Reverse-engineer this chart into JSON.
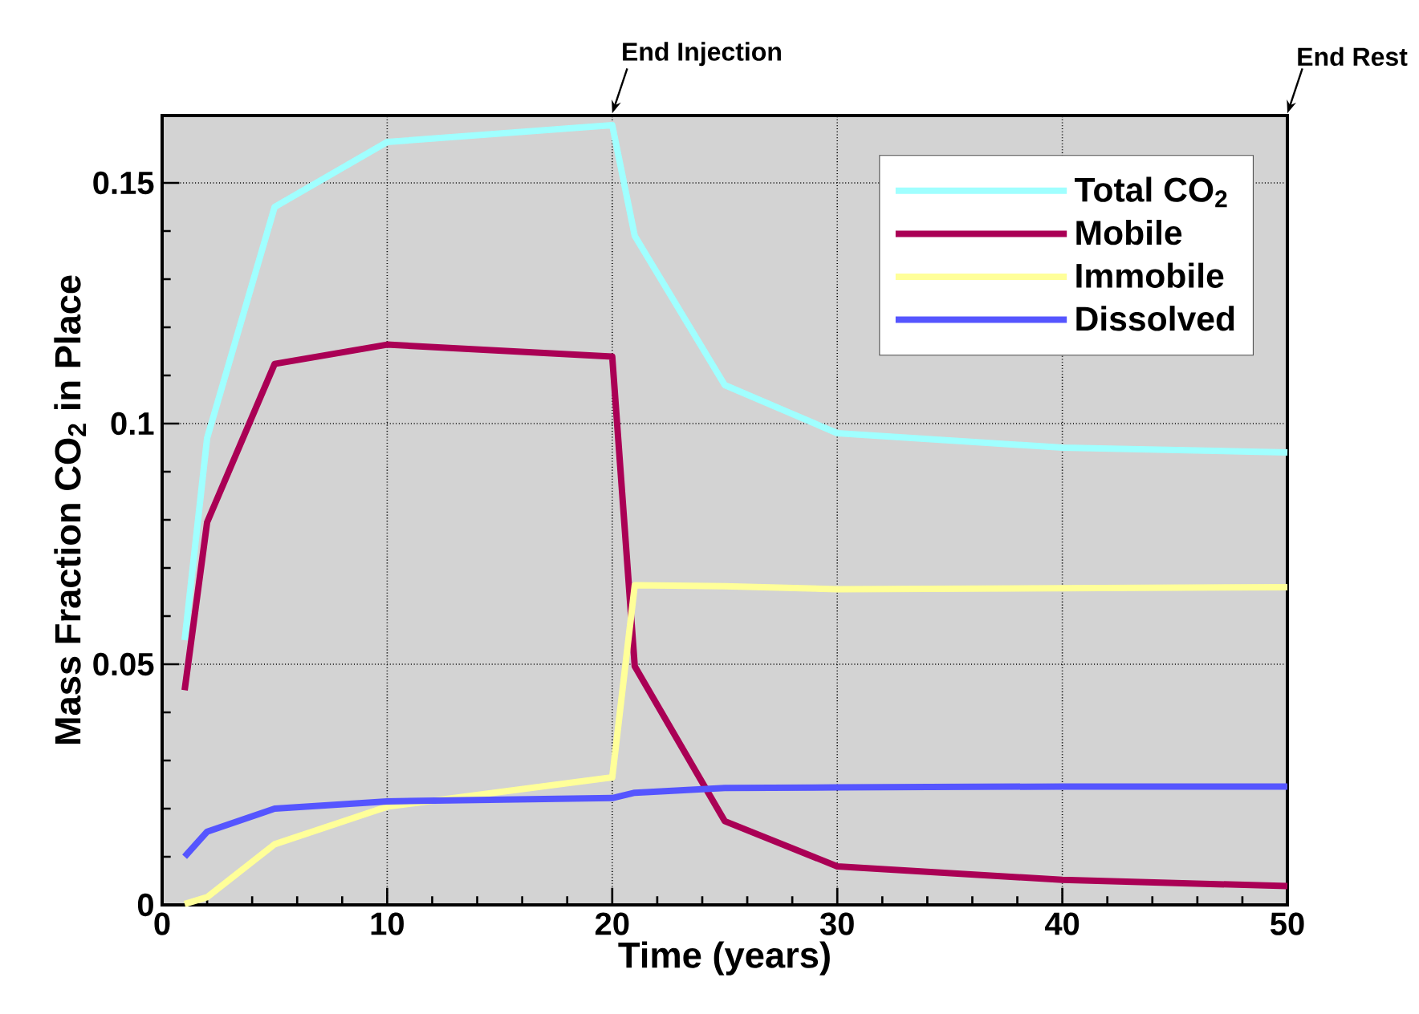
{
  "chart_data": {
    "type": "line",
    "xlabel": "Time (years)",
    "ylabel": "Mass Fraction CO$_{2}$ in Place",
    "x": [
      1,
      2,
      5,
      10,
      20,
      21,
      25,
      30,
      40,
      50
    ],
    "series": [
      {
        "name": "Total CO$_{2}$",
        "color": "#a0ffff",
        "values": [
          0.055,
          0.097,
          0.145,
          0.1585,
          0.162,
          0.139,
          0.108,
          0.098,
          0.095,
          0.094
        ]
      },
      {
        "name": "Mobile",
        "color": "#aa0055",
        "values": [
          0.0446,
          0.0795,
          0.1124,
          0.1164,
          0.1139,
          0.0496,
          0.0174,
          0.008,
          0.0052,
          0.0039
        ]
      },
      {
        "name": "Immobile",
        "color": "#ffff99",
        "values": [
          0.0002,
          0.0016,
          0.0126,
          0.0204,
          0.0265,
          0.0664,
          0.0662,
          0.0656,
          0.0658,
          0.066
        ]
      },
      {
        "name": "Dissolved",
        "color": "#5555ff",
        "values": [
          0.01,
          0.0152,
          0.02,
          0.0215,
          0.0222,
          0.0233,
          0.0243,
          0.0244,
          0.0246,
          0.0246
        ]
      }
    ],
    "xlim": [
      0,
      50
    ],
    "xticks": [
      0,
      10,
      20,
      30,
      40,
      50
    ],
    "ylim": [
      0,
      0.164
    ],
    "yticks": [
      0,
      0.05,
      0.1,
      0.15
    ],
    "grid": true,
    "legend": "top right",
    "marker": "none",
    "line_style": "solid",
    "annotations": [
      "End Injection",
      "End Rest"
    ]
  }
}
